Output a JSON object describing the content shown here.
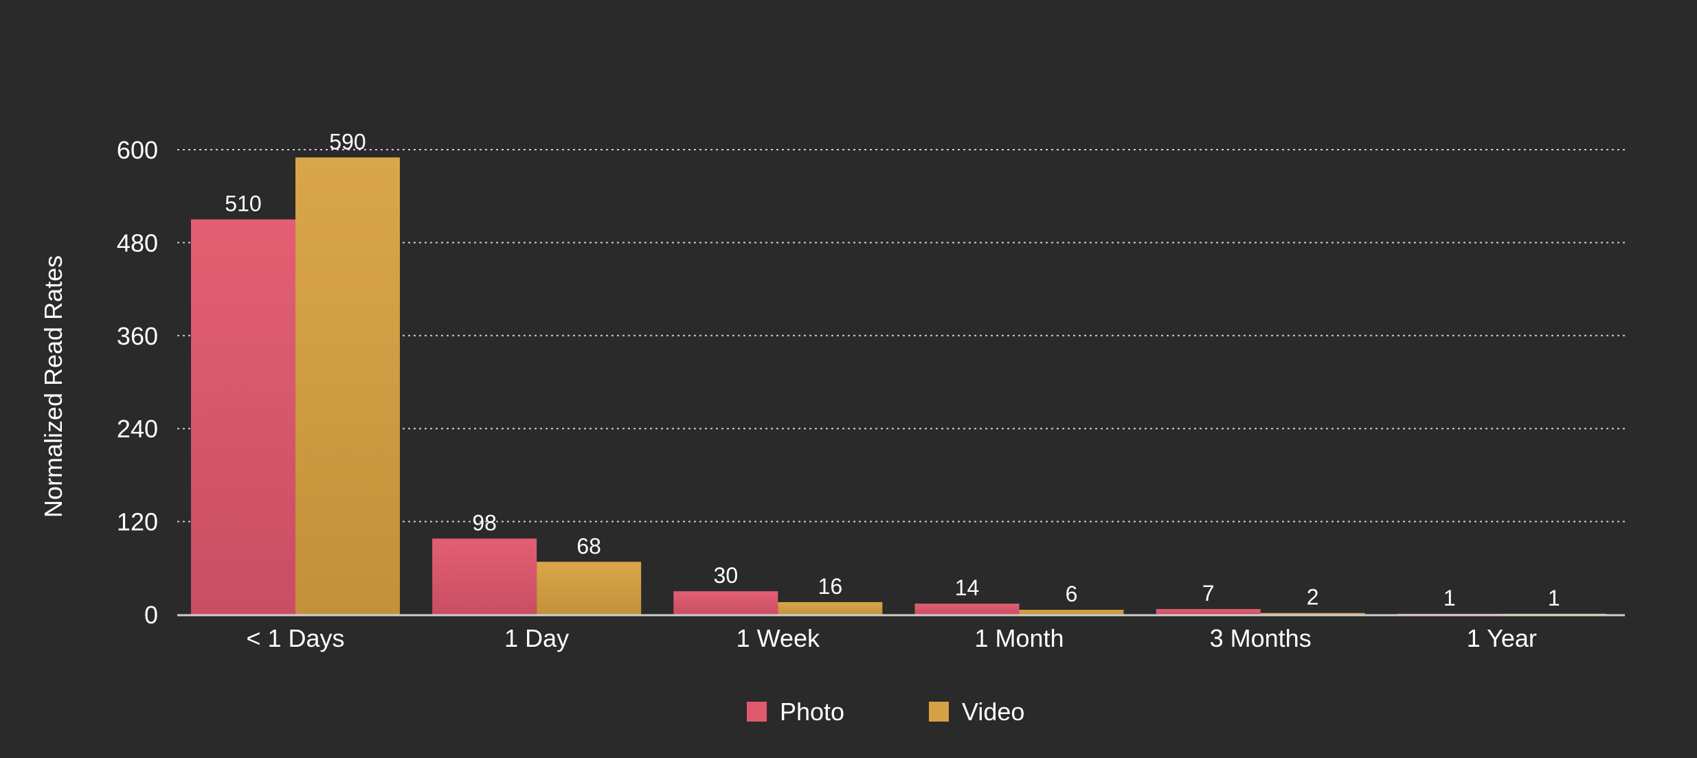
{
  "chart_data": {
    "type": "bar",
    "title": "",
    "xlabel": "",
    "ylabel": "Normalized  Read Rates",
    "ylim": [
      0,
      600
    ],
    "yticks": [
      0,
      120,
      240,
      360,
      480,
      600
    ],
    "categories": [
      "< 1 Days",
      "1 Day",
      "1 Week",
      "1 Month",
      "3 Months",
      "1 Year"
    ],
    "series": [
      {
        "name": "Photo",
        "color": "#e05a6e",
        "values": [
          510,
          98,
          30,
          14,
          7,
          1
        ]
      },
      {
        "name": "Video",
        "color": "#d4a245",
        "values": [
          590,
          68,
          16,
          6,
          2,
          1
        ]
      }
    ],
    "grid": true,
    "legend": "bottom-center"
  }
}
